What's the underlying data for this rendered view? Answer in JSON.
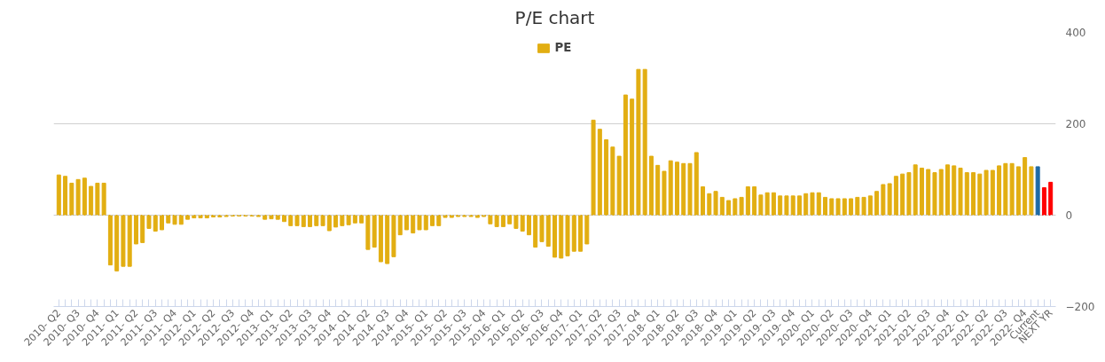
{
  "chart_data": {
    "type": "bar",
    "title": "P/E chart",
    "categories": [
      "2010- Q2",
      null,
      null,
      "2010- Q3",
      null,
      null,
      "2010- Q4",
      null,
      null,
      "2011- Q1",
      null,
      null,
      "2011- Q2",
      null,
      null,
      "2011- Q3",
      null,
      null,
      "2011- Q4",
      null,
      null,
      "2012- Q1",
      null,
      null,
      "2012- Q2",
      null,
      null,
      "2012- Q3",
      null,
      null,
      "2012- Q4",
      null,
      null,
      "2013- Q1",
      null,
      null,
      "2013- Q2",
      null,
      null,
      "2013- Q3",
      null,
      null,
      "2013- Q4",
      null,
      null,
      "2014- Q1",
      null,
      null,
      "2014- Q2",
      null,
      null,
      "2014- Q3",
      null,
      null,
      "2014- Q4",
      null,
      null,
      "2015- Q1",
      null,
      null,
      "2015- Q2",
      null,
      null,
      "2015- Q3",
      null,
      null,
      "2015- Q4",
      null,
      null,
      "2016- Q1",
      null,
      null,
      "2016- Q2",
      null,
      null,
      "2016- Q3",
      null,
      null,
      "2016- Q4",
      null,
      null,
      "2017- Q1",
      null,
      null,
      "2017- Q2",
      null,
      null,
      "2017- Q3",
      null,
      null,
      "2017- Q4",
      null,
      null,
      "2018- Q1",
      null,
      null,
      "2018- Q2",
      null,
      null,
      "2018- Q3",
      null,
      null,
      "2018- Q4",
      null,
      null,
      "2019- Q1",
      null,
      null,
      "2019- Q2",
      null,
      null,
      "2019- Q3",
      null,
      null,
      "2019- Q4",
      null,
      null,
      "2020- Q1",
      null,
      null,
      "2020- Q2",
      null,
      null,
      "2020- Q3",
      null,
      null,
      "2020- Q4",
      null,
      null,
      "2021- Q1",
      null,
      null,
      "2021- Q2",
      null,
      null,
      "2021- Q3",
      null,
      null,
      "2021- Q4",
      null,
      null,
      "2022- Q1",
      null,
      null,
      "2022- Q2",
      null,
      null,
      "2022- Q3",
      null,
      null,
      "2022- Q4",
      null,
      "Current",
      null,
      "NEXT YR"
    ],
    "series": [
      {
        "name": "PE",
        "color": "#e2ae12",
        "values": [
          88,
          85,
          70,
          78,
          81,
          63,
          70,
          70,
          -109,
          -122,
          -112,
          -112,
          -63,
          -60,
          -29,
          -35,
          -32,
          -17,
          -20,
          -20,
          -9,
          -6,
          -6,
          -6,
          -4,
          -4,
          -3,
          -2,
          -2,
          -2,
          -2,
          -3,
          -9,
          -8,
          -9,
          -14,
          -23,
          -23,
          -25,
          -25,
          -23,
          -23,
          -34,
          -26,
          -23,
          -21,
          -17,
          -17,
          -75,
          -70,
          -102,
          -106,
          -91,
          -43,
          -32,
          -39,
          -32,
          -32,
          -23,
          -23,
          -5,
          -5,
          -3,
          -3,
          -3,
          -5,
          -3,
          -19,
          -25,
          -25,
          -19,
          -29,
          -35,
          -43,
          -70,
          -58,
          -68,
          -92,
          -94,
          -89,
          -79,
          -79,
          -63,
          208,
          188,
          165,
          149,
          129,
          263,
          254,
          319,
          319,
          129,
          109,
          96,
          119,
          116,
          113,
          113,
          137,
          62,
          47,
          52,
          39,
          32,
          36,
          39,
          62,
          62,
          44,
          49,
          49,
          42,
          42,
          42,
          42,
          47,
          49,
          49,
          39,
          36,
          36,
          36,
          36,
          39,
          39,
          42,
          52,
          67,
          69,
          85,
          90,
          93,
          110,
          103,
          100,
          93,
          100,
          110,
          108,
          103,
          93,
          93,
          90,
          98,
          98,
          108,
          113,
          113,
          106,
          126,
          106,
          106,
          60,
          72
        ],
        "colors": [
          "#e2ae12",
          "#e2ae12",
          "#e2ae12",
          "#e2ae12",
          "#e2ae12",
          "#e2ae12",
          "#e2ae12",
          "#e2ae12",
          "#e2ae12",
          "#e2ae12",
          "#e2ae12",
          "#e2ae12",
          "#e2ae12",
          "#e2ae12",
          "#e2ae12",
          "#e2ae12",
          "#e2ae12",
          "#e2ae12",
          "#e2ae12",
          "#e2ae12",
          "#e2ae12",
          "#e2ae12",
          "#e2ae12",
          "#e2ae12",
          "#e2ae12",
          "#e2ae12",
          "#e2ae12",
          "#e2ae12",
          "#e2ae12",
          "#e2ae12",
          "#e2ae12",
          "#e2ae12",
          "#e2ae12",
          "#e2ae12",
          "#e2ae12",
          "#e2ae12",
          "#e2ae12",
          "#e2ae12",
          "#e2ae12",
          "#e2ae12",
          "#e2ae12",
          "#e2ae12",
          "#e2ae12",
          "#e2ae12",
          "#e2ae12",
          "#e2ae12",
          "#e2ae12",
          "#e2ae12",
          "#e2ae12",
          "#e2ae12",
          "#e2ae12",
          "#e2ae12",
          "#e2ae12",
          "#e2ae12",
          "#e2ae12",
          "#e2ae12",
          "#e2ae12",
          "#e2ae12",
          "#e2ae12",
          "#e2ae12",
          "#e2ae12",
          "#e2ae12",
          "#e2ae12",
          "#e2ae12",
          "#e2ae12",
          "#e2ae12",
          "#e2ae12",
          "#e2ae12",
          "#e2ae12",
          "#e2ae12",
          "#e2ae12",
          "#e2ae12",
          "#e2ae12",
          "#e2ae12",
          "#e2ae12",
          "#e2ae12",
          "#e2ae12",
          "#e2ae12",
          "#e2ae12",
          "#e2ae12",
          "#e2ae12",
          "#e2ae12",
          "#e2ae12",
          "#e2ae12",
          "#e2ae12",
          "#e2ae12",
          "#e2ae12",
          "#e2ae12",
          "#e2ae12",
          "#e2ae12",
          "#e2ae12",
          "#e2ae12",
          "#e2ae12",
          "#e2ae12",
          "#e2ae12",
          "#e2ae12",
          "#e2ae12",
          "#e2ae12",
          "#e2ae12",
          "#e2ae12",
          "#e2ae12",
          "#e2ae12",
          "#e2ae12",
          "#e2ae12",
          "#e2ae12",
          "#e2ae12",
          "#e2ae12",
          "#e2ae12",
          "#e2ae12",
          "#e2ae12",
          "#e2ae12",
          "#e2ae12",
          "#e2ae12",
          "#e2ae12",
          "#e2ae12",
          "#e2ae12",
          "#e2ae12",
          "#e2ae12",
          "#e2ae12",
          "#e2ae12",
          "#e2ae12",
          "#e2ae12",
          "#e2ae12",
          "#e2ae12",
          "#e2ae12",
          "#e2ae12",
          "#e2ae12",
          "#e2ae12",
          "#e2ae12",
          "#e2ae12",
          "#e2ae12",
          "#e2ae12",
          "#e2ae12",
          "#e2ae12",
          "#e2ae12",
          "#e2ae12",
          "#e2ae12",
          "#e2ae12",
          "#e2ae12",
          "#e2ae12",
          "#e2ae12",
          "#e2ae12",
          "#e2ae12",
          "#e2ae12",
          "#e2ae12",
          "#e2ae12",
          "#e2ae12",
          "#e2ae12",
          "#e2ae12",
          "#e2ae12",
          "#e2ae12",
          "#e2ae12",
          "#1f6aa5",
          "#ff0000",
          "#ff0000"
        ]
      }
    ],
    "ylim": [
      -200,
      400
    ],
    "yticks": [
      -200,
      0,
      200,
      400
    ],
    "grid": "y",
    "legend": "top",
    "ref_lines": [
      {
        "axis": "y",
        "value": 0,
        "color": "#cccccc",
        "line_style": "dotted"
      }
    ]
  }
}
